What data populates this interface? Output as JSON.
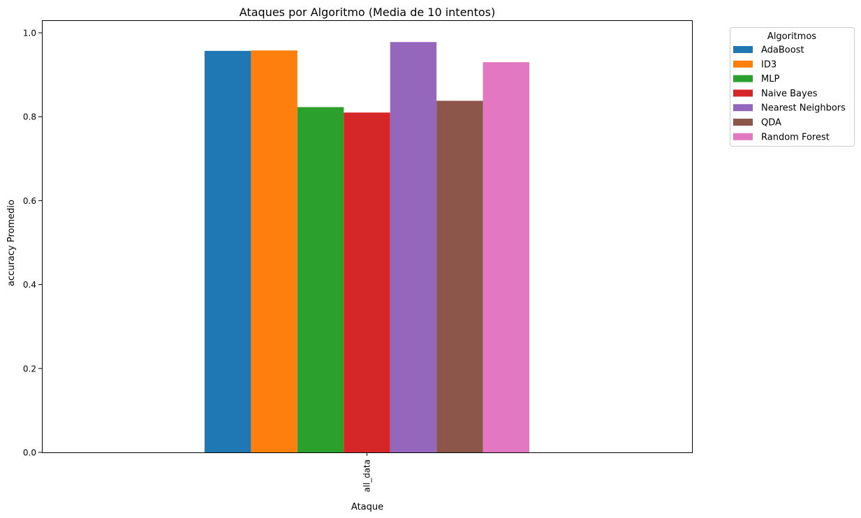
{
  "chart_data": {
    "type": "bar",
    "title": "Ataques por Algoritmo (Media de 10 intentos)",
    "xlabel": "Ataque",
    "ylabel": "accuracy Promedio",
    "categories": [
      "all_data"
    ],
    "ylim": [
      0,
      1.03
    ],
    "yticks": [
      0.0,
      0.2,
      0.4,
      0.6,
      0.8,
      1.0
    ],
    "ytick_labels": [
      "0.0",
      "0.2",
      "0.4",
      "0.6",
      "0.8",
      "1.0"
    ],
    "grid": false,
    "legend": {
      "title": "Algoritmos",
      "position": "outside-top-right"
    },
    "series": [
      {
        "name": "AdaBoost",
        "values": [
          0.957
        ],
        "color": "#1f77b4"
      },
      {
        "name": "ID3",
        "values": [
          0.958
        ],
        "color": "#ff7f0e"
      },
      {
        "name": "MLP",
        "values": [
          0.823
        ],
        "color": "#2ca02c"
      },
      {
        "name": "Naive Bayes",
        "values": [
          0.81
        ],
        "color": "#d62728"
      },
      {
        "name": "Nearest Neighbors",
        "values": [
          0.978
        ],
        "color": "#9467bd"
      },
      {
        "name": "QDA",
        "values": [
          0.838
        ],
        "color": "#8c564b"
      },
      {
        "name": "Random Forest",
        "values": [
          0.93
        ],
        "color": "#e377c2"
      }
    ]
  }
}
